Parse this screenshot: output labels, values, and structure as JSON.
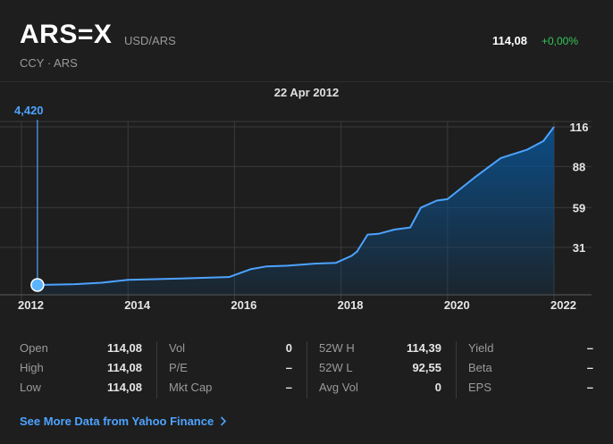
{
  "header": {
    "symbol": "ARS=X",
    "pair": "USD/ARS",
    "subtitle": "CCY · ARS",
    "price": "114,08",
    "change": "+0,00%",
    "change_color": "#34c759"
  },
  "scrub": {
    "date": "22 Apr 2012",
    "value": "4,420"
  },
  "chart_data": {
    "type": "area",
    "title": "",
    "xlabel": "",
    "ylabel": "",
    "x": [
      2012.3,
      2013.0,
      2013.5,
      2014.0,
      2015.0,
      2015.9,
      2016.3,
      2016.6,
      2017.0,
      2017.5,
      2017.9,
      2018.2,
      2018.3,
      2018.5,
      2018.7,
      2019.0,
      2019.3,
      2019.5,
      2019.8,
      2020.0,
      2020.5,
      2021.0,
      2021.5,
      2021.8,
      2022.0
    ],
    "y": [
      4.42,
      5.0,
      6.0,
      8.0,
      9.0,
      10.0,
      15.5,
      17.5,
      18.0,
      19.5,
      20.0,
      25.0,
      28.0,
      40.0,
      40.5,
      43.5,
      45.0,
      59.0,
      64.0,
      65.0,
      80.0,
      94.0,
      100.0,
      106.0,
      116.0
    ],
    "yticks": [
      31,
      59,
      88,
      116
    ],
    "xticks": [
      "2012",
      "2014",
      "2016",
      "2018",
      "2020",
      "2022"
    ],
    "xrange": [
      2012.0,
      2022.1
    ],
    "yrange": [
      0,
      116
    ],
    "grid": true,
    "line_color": "#4da3ff",
    "fill_color": "#0b4f8a"
  },
  "stats": {
    "col1": [
      {
        "label": "Open",
        "value": "114,08"
      },
      {
        "label": "High",
        "value": "114,08"
      },
      {
        "label": "Low",
        "value": "114,08"
      }
    ],
    "col2": [
      {
        "label": "Vol",
        "value": "0"
      },
      {
        "label": "P/E",
        "value": "–"
      },
      {
        "label": "Mkt Cap",
        "value": "–"
      }
    ],
    "col3": [
      {
        "label": "52W H",
        "value": "114,39"
      },
      {
        "label": "52W L",
        "value": "92,55"
      },
      {
        "label": "Avg Vol",
        "value": "0"
      }
    ],
    "col4": [
      {
        "label": "Yield",
        "value": "–"
      },
      {
        "label": "Beta",
        "value": "–"
      },
      {
        "label": "EPS",
        "value": "–"
      }
    ]
  },
  "footer": {
    "more_link": "See More Data from Yahoo Finance",
    "chevron_icon": "chevron-right-icon"
  }
}
